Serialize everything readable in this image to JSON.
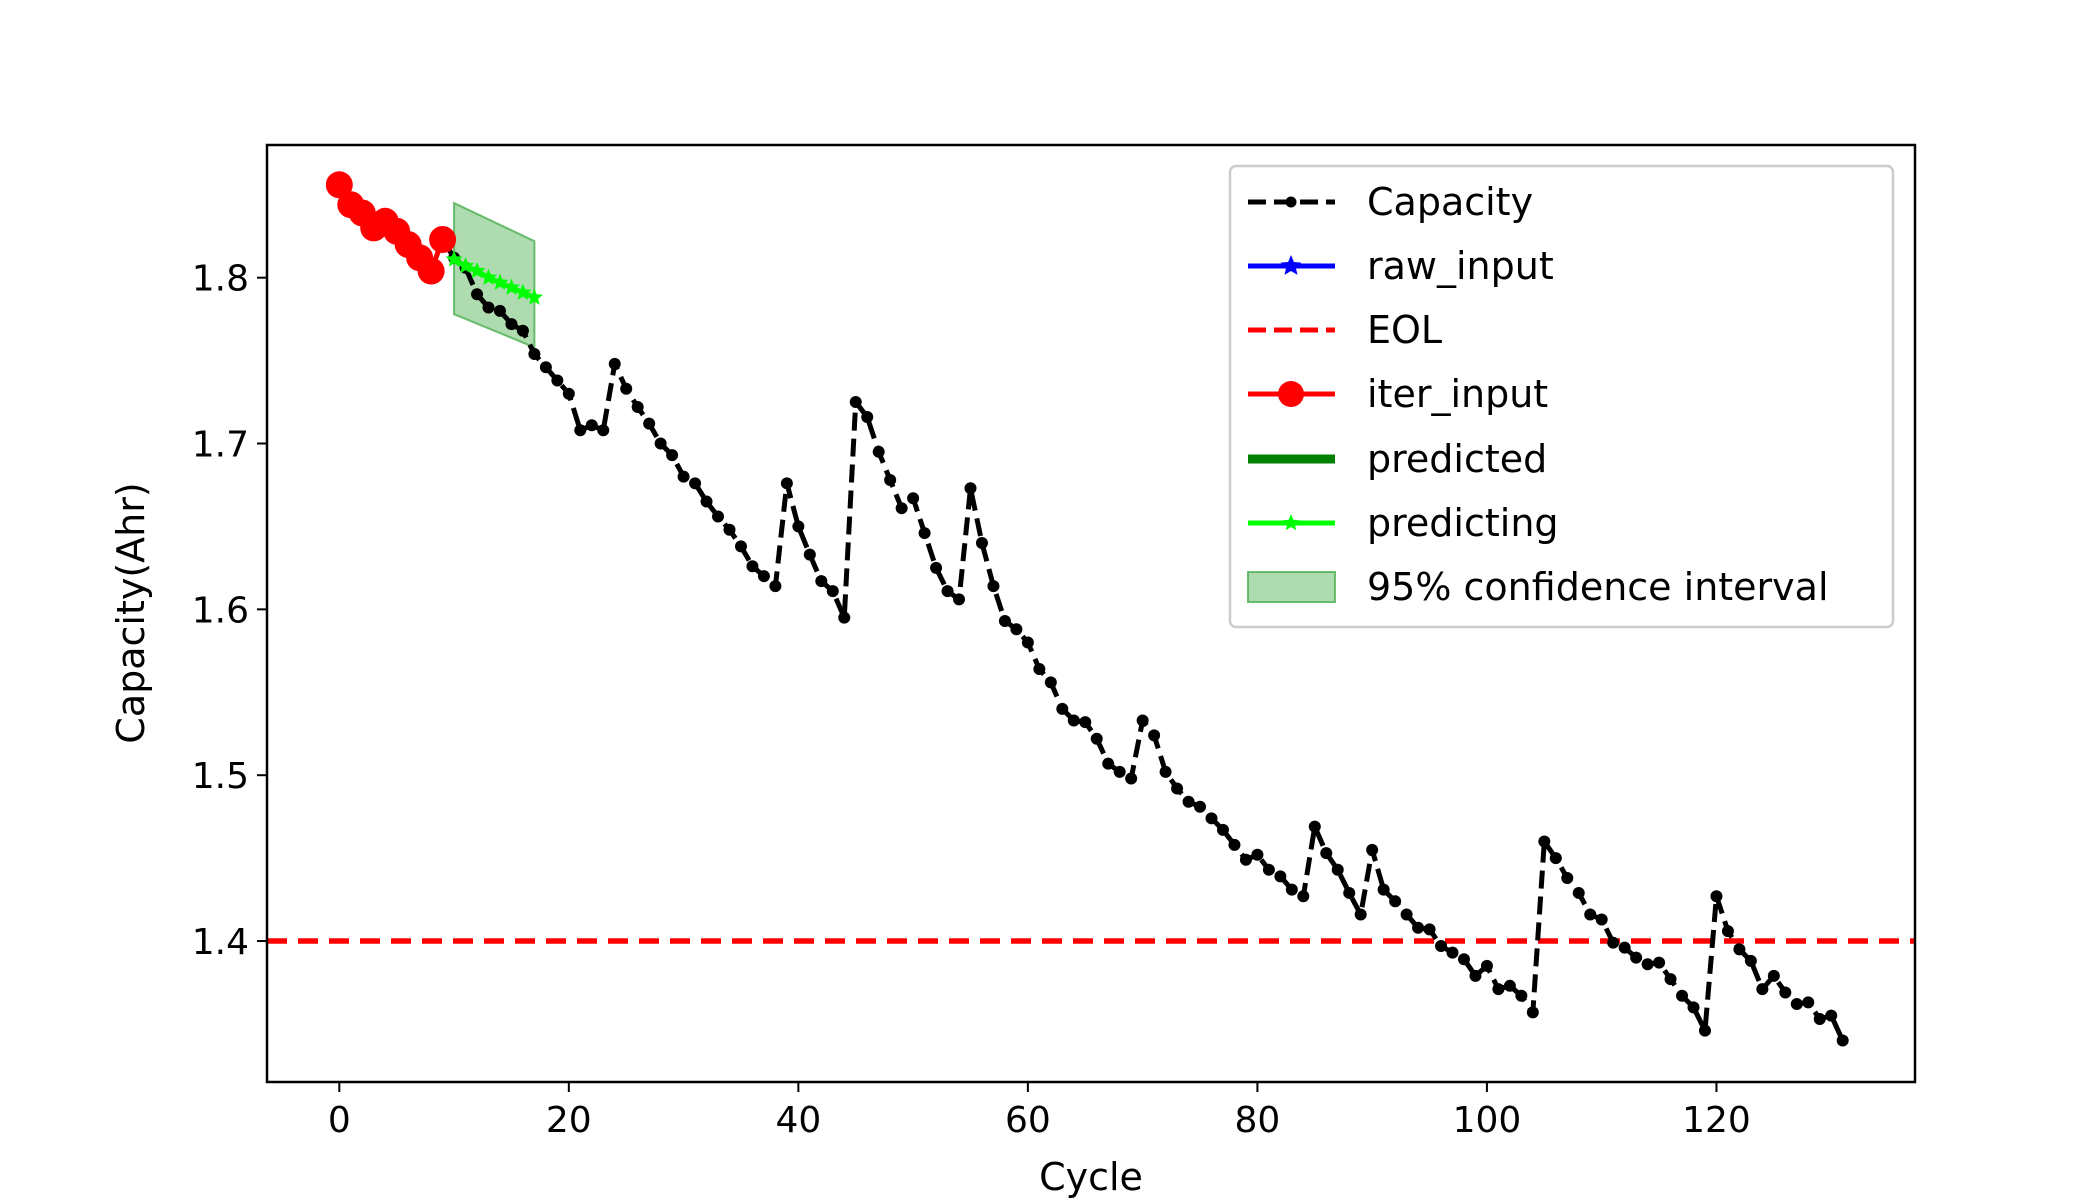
{
  "chart_data": {
    "type": "line",
    "title": "",
    "xlabel": "Cycle",
    "ylabel": "Capacity(Ahr)",
    "xlim": [
      -6.3,
      137.3
    ],
    "ylim": [
      1.315,
      1.88
    ],
    "xticks": [
      0,
      20,
      40,
      60,
      80,
      100,
      120
    ],
    "yticks": [
      1.4,
      1.5,
      1.6,
      1.7,
      1.8
    ],
    "eol_threshold": 1.4,
    "legend_position": "top-right",
    "series": [
      {
        "name": "Capacity",
        "style": "dashed-line-dot-markers",
        "color": "#000000",
        "x": [
          0,
          1,
          2,
          3,
          4,
          5,
          6,
          7,
          8,
          9,
          10,
          11,
          12,
          13,
          14,
          15,
          16,
          17,
          18,
          19,
          20,
          21,
          22,
          23,
          24,
          25,
          26,
          27,
          28,
          29,
          30,
          31,
          32,
          33,
          34,
          35,
          36,
          37,
          38,
          39,
          40,
          41,
          42,
          43,
          44,
          45,
          46,
          47,
          48,
          49,
          50,
          51,
          52,
          53,
          54,
          55,
          56,
          57,
          58,
          59,
          60,
          61,
          62,
          63,
          64,
          65,
          66,
          67,
          68,
          69,
          70,
          71,
          72,
          73,
          74,
          75,
          76,
          77,
          78,
          79,
          80,
          81,
          82,
          83,
          84,
          85,
          86,
          87,
          88,
          89,
          90,
          91,
          92,
          93,
          94,
          95,
          96,
          97,
          98,
          99,
          100,
          101,
          102,
          103,
          104,
          105,
          106,
          107,
          108,
          109,
          110,
          111,
          112,
          113,
          114,
          115,
          116,
          117,
          118,
          119,
          120,
          121,
          122,
          123,
          124,
          125,
          126,
          127,
          128,
          129,
          130,
          131
        ],
        "y": [
          1.856,
          1.844,
          1.839,
          1.83,
          1.834,
          1.828,
          1.82,
          1.812,
          1.804,
          1.823,
          1.812,
          1.806,
          1.79,
          1.782,
          1.78,
          1.772,
          1.768,
          1.754,
          1.746,
          1.738,
          1.73,
          1.708,
          1.711,
          1.708,
          1.748,
          1.733,
          1.722,
          1.712,
          1.7,
          1.693,
          1.68,
          1.676,
          1.665,
          1.656,
          1.648,
          1.638,
          1.626,
          1.62,
          1.614,
          1.676,
          1.65,
          1.633,
          1.617,
          1.611,
          1.595,
          1.725,
          1.716,
          1.695,
          1.678,
          1.661,
          1.667,
          1.646,
          1.625,
          1.611,
          1.606,
          1.673,
          1.64,
          1.614,
          1.593,
          1.588,
          1.58,
          1.564,
          1.556,
          1.54,
          1.533,
          1.532,
          1.522,
          1.507,
          1.502,
          1.498,
          1.533,
          1.524,
          1.502,
          1.492,
          1.484,
          1.481,
          1.474,
          1.467,
          1.458,
          1.449,
          1.452,
          1.443,
          1.439,
          1.431,
          1.427,
          1.469,
          1.453,
          1.443,
          1.429,
          1.416,
          1.455,
          1.431,
          1.424,
          1.416,
          1.408,
          1.407,
          1.397,
          1.393,
          1.389,
          1.379,
          1.385,
          1.371,
          1.373,
          1.367,
          1.357,
          1.46,
          1.45,
          1.438,
          1.429,
          1.416,
          1.413,
          1.399,
          1.396,
          1.39,
          1.386,
          1.387,
          1.377,
          1.367,
          1.36,
          1.346,
          1.427,
          1.406,
          1.395,
          1.388,
          1.371,
          1.379,
          1.369,
          1.362,
          1.363,
          1.353,
          1.355,
          1.34
        ]
      },
      {
        "name": "raw_input",
        "style": "solid-line-star-markers",
        "color": "#0000ff",
        "x": [],
        "y": []
      },
      {
        "name": "EOL",
        "style": "dashed-line",
        "color": "#ff0000"
      },
      {
        "name": "iter_input",
        "style": "solid-line-circle-markers",
        "color": "#ff0000",
        "x": [
          0,
          1,
          2,
          3,
          4,
          5,
          6,
          7,
          8,
          9
        ],
        "y": [
          1.856,
          1.844,
          1.839,
          1.83,
          1.834,
          1.828,
          1.82,
          1.812,
          1.804,
          1.823
        ]
      },
      {
        "name": "predicted",
        "style": "solid-line",
        "color": "#008000",
        "x": [],
        "y": []
      },
      {
        "name": "predicting",
        "style": "solid-line-star-markers",
        "color": "#00ff00",
        "x": [
          10,
          11,
          12,
          13,
          14,
          15,
          16,
          17
        ],
        "y": [
          1.811,
          1.807,
          1.804,
          1.8,
          1.797,
          1.794,
          1.791,
          1.788
        ]
      },
      {
        "name": "95% confidence interval",
        "style": "filled-band",
        "color": "#4caf50",
        "x": [
          10,
          17
        ],
        "lower": [
          1.778,
          1.758
        ],
        "upper": [
          1.845,
          1.822
        ]
      }
    ]
  }
}
